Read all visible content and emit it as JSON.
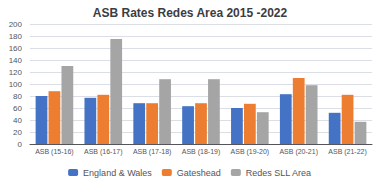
{
  "chart_data": {
    "type": "bar",
    "title": "ASB Rates Redes Area 2015 -2022",
    "categories": [
      "ASB (15-16)",
      "ASB (16-17)",
      "ASB (17-18)",
      "ASB (18-19)",
      "ASB (19-20)",
      "ASB (20-21)",
      "ASB (21-22)"
    ],
    "series": [
      {
        "name": "England & Wales",
        "color": "#4472C4",
        "values": [
          80,
          77,
          68,
          63,
          60,
          83,
          52
        ]
      },
      {
        "name": "Gateshead",
        "color": "#ED7D31",
        "values": [
          88,
          82,
          68,
          68,
          67,
          110,
          82
        ]
      },
      {
        "name": "Redes SLL Area",
        "color": "#A5A5A5",
        "values": [
          130,
          175,
          108,
          108,
          53,
          98,
          37
        ]
      }
    ],
    "ylim": [
      0,
      200
    ],
    "yticks": [
      0,
      20,
      40,
      60,
      80,
      100,
      120,
      140,
      160,
      180,
      200
    ],
    "grid": true,
    "legend": "bottom"
  }
}
